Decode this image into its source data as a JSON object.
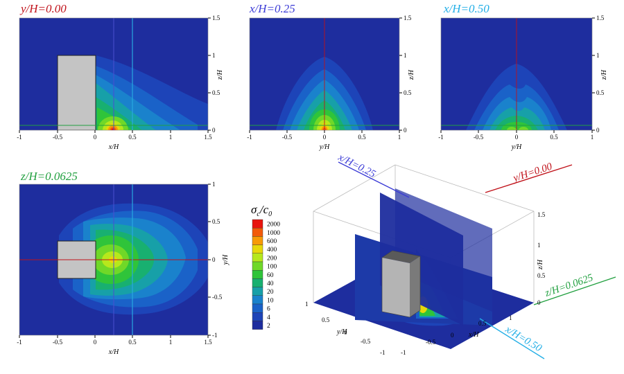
{
  "chart_data": [
    {
      "type": "contour",
      "title": "y/H=0.00",
      "title_color": "#c0121a",
      "xlabel": "x/H",
      "ylabel": "z/H",
      "xlim": [
        -1,
        1.5
      ],
      "ylim": [
        0,
        1.5
      ],
      "xticks": [
        "-1",
        "-0.5",
        "0",
        "0.5",
        "1",
        "1.5"
      ],
      "yticks": [
        "0",
        "0.5",
        "1",
        "1.5"
      ],
      "building": {
        "x": [
          -0.5,
          0
        ],
        "z": [
          0,
          1
        ]
      },
      "peak": {
        "x": 0.25,
        "z": 0.0,
        "level": 2000
      },
      "reference_lines": [
        {
          "axis": "x",
          "value": 0.25,
          "color": "#4a4fd0"
        },
        {
          "axis": "x",
          "value": 0.5,
          "color": "#28a8e0"
        },
        {
          "axis": "z",
          "value": 0.0625,
          "color": "#22a040"
        }
      ]
    },
    {
      "type": "contour",
      "title": "x/H=0.25",
      "title_color": "#3b3bd6",
      "xlabel": "y/H",
      "ylabel": "z/H",
      "xlim": [
        -1,
        1
      ],
      "ylim": [
        0,
        1.5
      ],
      "xticks": [
        "-1",
        "-0.5",
        "0",
        "0.5",
        "1"
      ],
      "yticks": [
        "0",
        "0.5",
        "1",
        "1.5"
      ],
      "peak": {
        "y": 0.0,
        "z": 0.0,
        "level": 1000
      },
      "reference_lines": [
        {
          "axis": "y",
          "value": 0.0,
          "color": "#c0121a"
        },
        {
          "axis": "z",
          "value": 0.0625,
          "color": "#22a040"
        }
      ]
    },
    {
      "type": "contour",
      "title": "x/H=0.50",
      "title_color": "#22aee6",
      "xlabel": "y/H",
      "ylabel": "z/H",
      "xlim": [
        -1,
        1
      ],
      "ylim": [
        0,
        1.5
      ],
      "xticks": [
        "-1",
        "-0.5",
        "0",
        "0.5",
        "1"
      ],
      "yticks": [
        "0",
        "0.5",
        "1",
        "1.5"
      ],
      "peak": {
        "y": 0.0,
        "z": 0.0,
        "level": 100
      },
      "reference_lines": [
        {
          "axis": "y",
          "value": 0.0,
          "color": "#c0121a"
        },
        {
          "axis": "z",
          "value": 0.0625,
          "color": "#22a040"
        }
      ]
    },
    {
      "type": "contour",
      "title": "z/H=0.0625",
      "title_color": "#22a040",
      "xlabel": "x/H",
      "ylabel": "y/H",
      "xlim": [
        -1,
        1.5
      ],
      "ylim": [
        -1,
        1
      ],
      "xticks": [
        "-1",
        "-0.5",
        "0",
        "0.5",
        "1",
        "1.5"
      ],
      "yticks": [
        "-1",
        "-0.5",
        "0",
        "0.5",
        "1"
      ],
      "building": {
        "x": [
          -0.5,
          0
        ],
        "y": [
          -0.25,
          0.25
        ]
      },
      "peak": {
        "x": 0.25,
        "y": 0.0,
        "level": 400
      },
      "reference_lines": [
        {
          "axis": "x",
          "value": 0.25,
          "color": "#4a4fd0"
        },
        {
          "axis": "x",
          "value": 0.5,
          "color": "#28a8e0"
        },
        {
          "axis": "y",
          "value": 0.0,
          "color": "#c0121a"
        }
      ]
    },
    {
      "type": "3d-slices",
      "slice_labels": [
        {
          "text": "x/H=0.25",
          "color": "#3b3bd6"
        },
        {
          "text": "y/H=0.00",
          "color": "#c0121a"
        },
        {
          "text": "z/H=0.0625",
          "color": "#22a040"
        },
        {
          "text": "x/H=0.50",
          "color": "#22aee6"
        }
      ],
      "axis_labels": {
        "x": "x/H",
        "y": "y/H",
        "z": "z/H"
      },
      "xticks": [
        "-1",
        "-0.5",
        "0",
        "0.5",
        "1"
      ],
      "yticks": [
        "1",
        "0.5",
        "0",
        "-0.5",
        "-1"
      ],
      "zticks": [
        "0",
        "0.5",
        "1",
        "1.5"
      ]
    }
  ],
  "legend": {
    "title_sigma": "σ",
    "title_sub_c": "c",
    "title_slash": "/",
    "title_c": "c",
    "title_sub_0": "0",
    "levels": [
      "2000",
      "1000",
      "600",
      "400",
      "200",
      "100",
      "60",
      "40",
      "20",
      "10",
      "6",
      "4",
      "2"
    ],
    "colors": [
      "#e8140e",
      "#f25a0a",
      "#f79a06",
      "#e7d80a",
      "#b6e81c",
      "#70d828",
      "#2fc43a",
      "#18b070",
      "#17a0a8",
      "#1a82cc",
      "#1a62c8",
      "#1d44b8",
      "#1e2d9e"
    ]
  }
}
